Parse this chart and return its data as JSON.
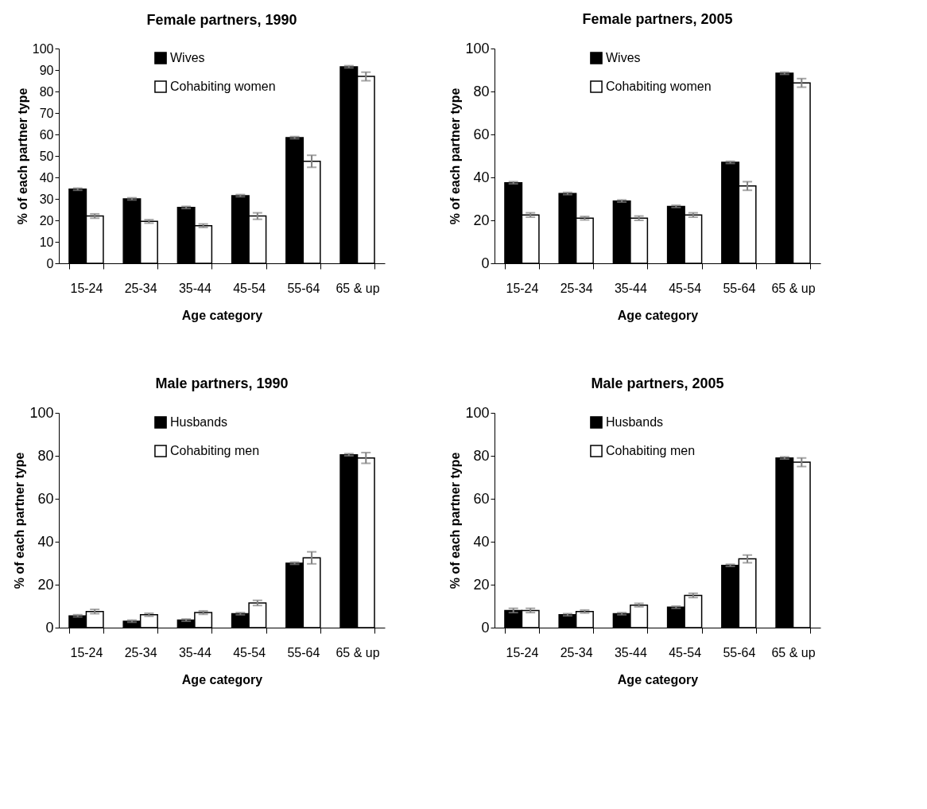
{
  "chart_data": [
    {
      "type": "bar",
      "title": "Female partners, 1990",
      "xlabel": "Age category",
      "ylabel": "% of each partner type",
      "categories": [
        "15-24",
        "25-34",
        "35-44",
        "45-54",
        "55-64",
        "65 & up"
      ],
      "ylim": [
        0,
        100
      ],
      "yticks": [
        0,
        10,
        20,
        30,
        40,
        50,
        60,
        70,
        80,
        90,
        100
      ],
      "grid": false,
      "legend": "top",
      "series": [
        {
          "name": "Wives",
          "color": "#000000",
          "values": [
            34.5,
            30,
            26,
            31.5,
            58.5,
            91.5
          ],
          "errors": [
            0.5,
            0.5,
            0.5,
            0.5,
            0.5,
            0.5
          ]
        },
        {
          "name": "Cohabiting women",
          "color": "#ffffff",
          "values": [
            22,
            19.5,
            17.5,
            22,
            47.5,
            87
          ],
          "errors": [
            1,
            0.8,
            0.8,
            1.5,
            2.8,
            2
          ]
        }
      ]
    },
    {
      "type": "bar",
      "title": "Female partners, 2005",
      "xlabel": "Age category",
      "ylabel": "% of each partner type",
      "categories": [
        "15-24",
        "25-34",
        "35-44",
        "45-54",
        "55-64",
        "65 & up"
      ],
      "ylim": [
        0,
        100
      ],
      "yticks": [
        0,
        20,
        40,
        60,
        80,
        100
      ],
      "grid": false,
      "legend": "top",
      "series": [
        {
          "name": "Wives",
          "color": "#000000",
          "values": [
            37.5,
            32.5,
            29,
            26.5,
            47,
            88.5
          ],
          "errors": [
            0.5,
            0.5,
            0.5,
            0.5,
            0.5,
            0.5
          ]
        },
        {
          "name": "Cohabiting women",
          "color": "#ffffff",
          "values": [
            22.5,
            21,
            21,
            22.5,
            36,
            84
          ],
          "errors": [
            1,
            0.8,
            1,
            1,
            2,
            2
          ]
        }
      ]
    },
    {
      "type": "bar",
      "title": "Male partners, 1990",
      "xlabel": "Age category",
      "ylabel": "% of each partner type",
      "categories": [
        "15-24",
        "25-34",
        "35-44",
        "45-54",
        "55-64",
        "65 & up"
      ],
      "ylim": [
        0,
        100
      ],
      "yticks": [
        0,
        20,
        40,
        60,
        80,
        100
      ],
      "grid": false,
      "legend": "top",
      "series": [
        {
          "name": "Husbands",
          "color": "#000000",
          "values": [
            5.5,
            3,
            3.5,
            6.5,
            30,
            80.5
          ],
          "errors": [
            0.5,
            0.5,
            0.5,
            0.5,
            0.5,
            0.5
          ]
        },
        {
          "name": "Cohabiting men",
          "color": "#ffffff",
          "values": [
            7.5,
            6,
            7,
            11.5,
            32.5,
            79
          ],
          "errors": [
            1,
            0.7,
            0.8,
            1.2,
            2.8,
            2.5
          ]
        }
      ]
    },
    {
      "type": "bar",
      "title": "Male partners, 2005",
      "xlabel": "Age category",
      "ylabel": "% of each partner type",
      "categories": [
        "15-24",
        "25-34",
        "35-44",
        "45-54",
        "55-64",
        "65 & up"
      ],
      "ylim": [
        0,
        100
      ],
      "yticks": [
        0,
        20,
        40,
        60,
        80,
        100
      ],
      "grid": false,
      "legend": "top",
      "series": [
        {
          "name": "Husbands",
          "color": "#000000",
          "values": [
            8,
            6,
            6.5,
            9.5,
            29,
            79
          ],
          "errors": [
            1,
            0.5,
            0.5,
            0.5,
            0.5,
            0.5
          ]
        },
        {
          "name": "Cohabiting men",
          "color": "#ffffff",
          "values": [
            8,
            7.5,
            10.5,
            15,
            32,
            77
          ],
          "errors": [
            1,
            0.7,
            0.8,
            1,
            1.8,
            2
          ]
        }
      ]
    }
  ]
}
